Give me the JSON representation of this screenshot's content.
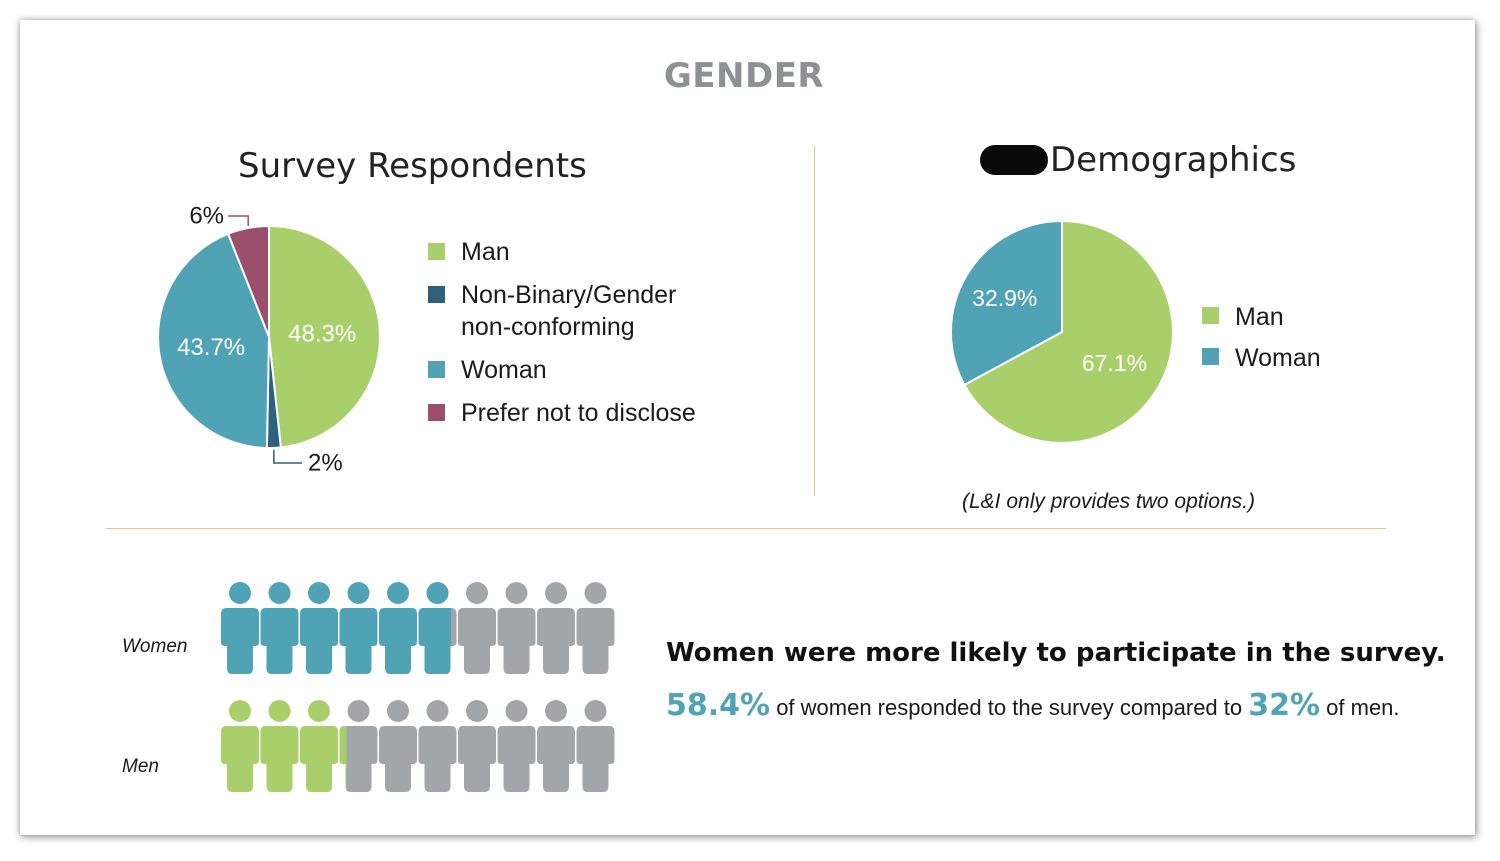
{
  "page": {
    "title": "GENDER"
  },
  "chart_data": [
    {
      "type": "pie",
      "title": "Survey Respondents",
      "slices": [
        {
          "label": "Man",
          "value": 48.3,
          "color": "#a9cf6b",
          "data_label": "48.3%"
        },
        {
          "label": "Non-Binary/Gender non-conforming",
          "value": 2,
          "color": "#2f607d",
          "data_label": "2%"
        },
        {
          "label": "Woman",
          "value": 43.7,
          "color": "#4fa3b5",
          "data_label": "43.7%"
        },
        {
          "label": "Prefer not to disclose",
          "value": 6,
          "color": "#9b4f6a",
          "data_label": "6%"
        }
      ],
      "legend": {
        "items": [
          {
            "label_lines": [
              "Man"
            ],
            "color": "#a9cf6b"
          },
          {
            "label_lines": [
              "Non-Binary/Gender",
              "non-conforming"
            ],
            "color": "#2f607d"
          },
          {
            "label_lines": [
              "Woman"
            ],
            "color": "#4fa3b5"
          },
          {
            "label_lines": [
              "Prefer not to disclose"
            ],
            "color": "#9b4f6a"
          }
        ]
      }
    },
    {
      "type": "pie",
      "title": "Demographics",
      "title_prefix_redacted": true,
      "slices": [
        {
          "label": "Man",
          "value": 67.1,
          "color": "#a9cf6b",
          "data_label": "67.1%"
        },
        {
          "label": "Woman",
          "value": 32.9,
          "color": "#4fa3b5",
          "data_label": "32.9%"
        }
      ],
      "legend": {
        "items": [
          {
            "label_lines": [
              "Man"
            ],
            "color": "#a9cf6b"
          },
          {
            "label_lines": [
              "Woman"
            ],
            "color": "#4fa3b5"
          }
        ]
      },
      "note": "(L&I only provides two options.)"
    },
    {
      "type": "pictograph",
      "icons_per_row": 10,
      "inactive_color": "#a3a6a9",
      "rows": [
        {
          "label": "Women",
          "value_percent": 58.4,
          "color": "#4fa3b5"
        },
        {
          "label": "Men",
          "value_percent": 32,
          "color": "#a9cf6b"
        }
      ]
    }
  ],
  "summary": {
    "headline": "Women were more likely to participate in the survey.",
    "women_value": "58.4%",
    "text_middle": " of women responded to the survey compared to ",
    "men_value": "32%",
    "text_end": " of men."
  }
}
